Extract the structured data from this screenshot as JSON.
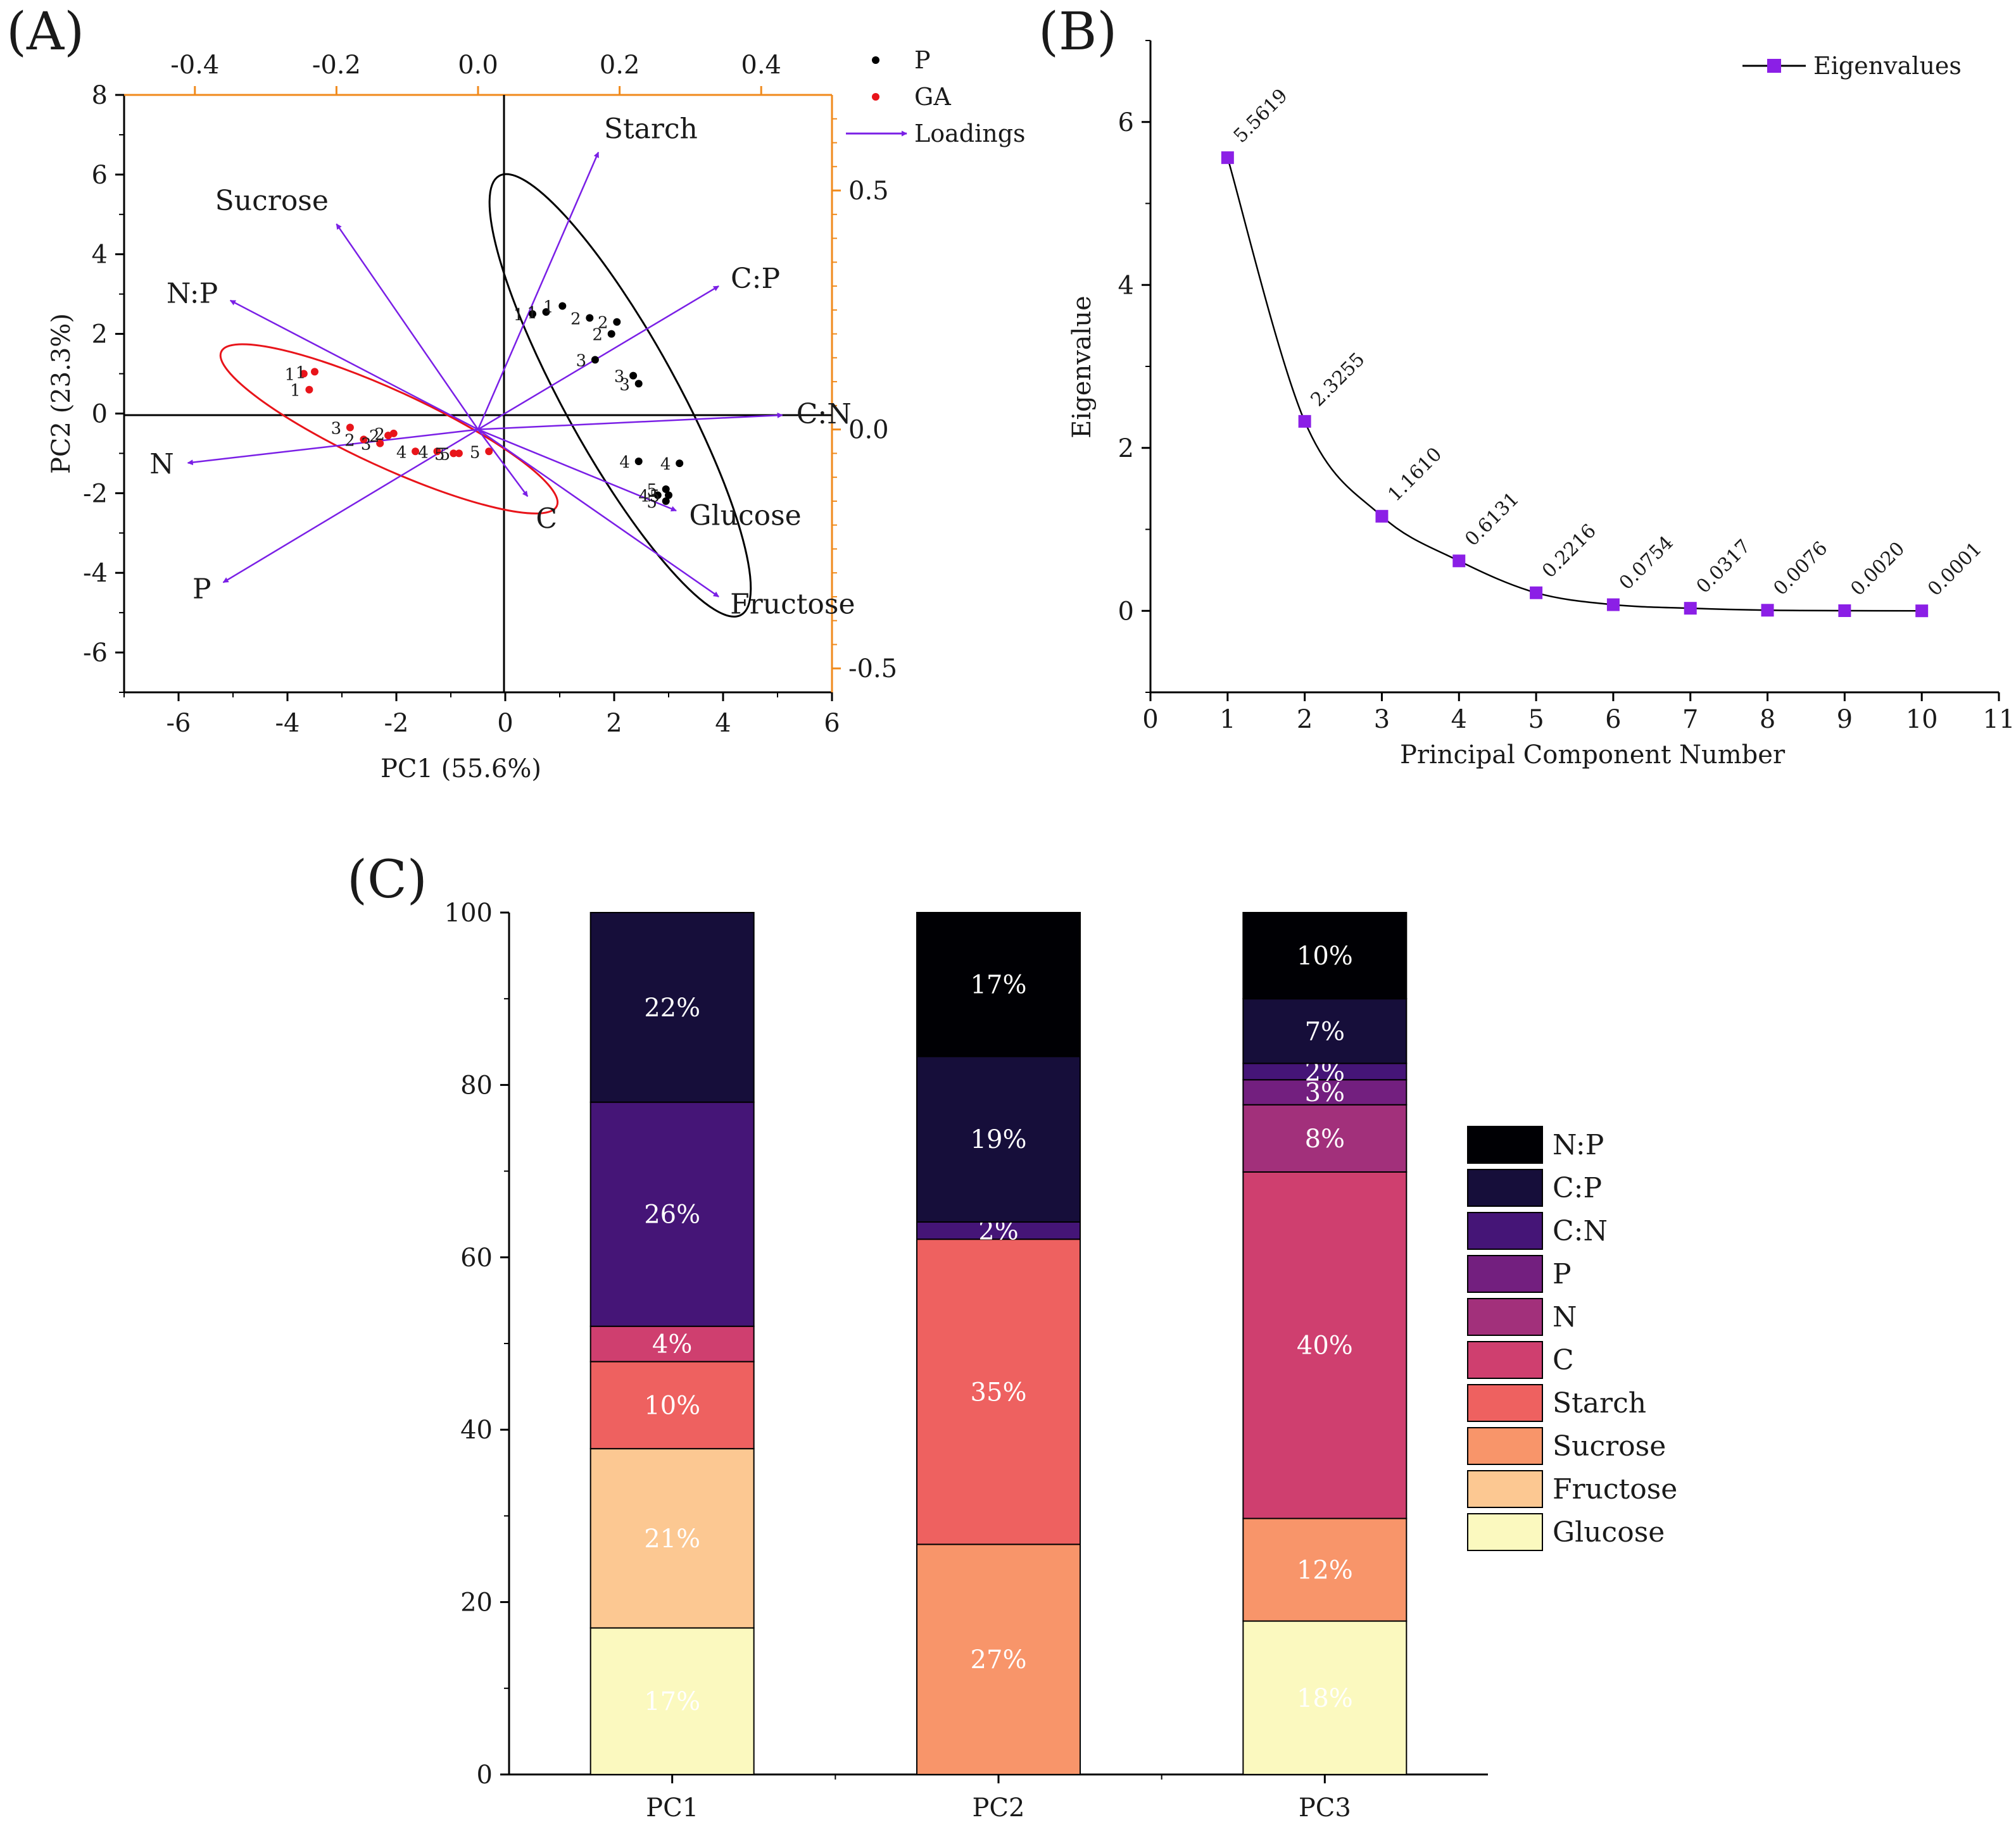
{
  "figure": {
    "panels": [
      "(A)",
      "(B)",
      "(C)"
    ]
  },
  "chart_data": [
    {
      "type": "scatter",
      "panel": "(A)",
      "title": "",
      "xlabel": "PC1 (55.6%)",
      "ylabel": "PC2 (23.3%)",
      "xlim": [
        -7,
        6
      ],
      "ylim": [
        -7,
        8
      ],
      "x_ticks": [
        -6,
        -4,
        -2,
        0,
        2,
        4,
        6
      ],
      "y_ticks": [
        -6,
        -4,
        -2,
        0,
        2,
        4,
        6,
        8
      ],
      "loading_xlim": [
        -0.5,
        0.5
      ],
      "loading_ylim": [
        -0.55,
        0.7
      ],
      "top_ticks": [
        "-0.4",
        "-0.2",
        "0.0",
        "0.2",
        "0.4"
      ],
      "top_tick_values": [
        -0.4,
        -0.2,
        0.0,
        0.2,
        0.4
      ],
      "right_ticks": [
        "0.5",
        "0.0",
        "-0.5"
      ],
      "right_tick_values": [
        0.5,
        0.0,
        -0.5
      ],
      "legend": [
        {
          "name": "P",
          "color": "#000000",
          "symbol": "dot"
        },
        {
          "name": "GA",
          "color": "#e8141a",
          "symbol": "dot"
        },
        {
          "name": "Loadings",
          "color": "#7a1fe6",
          "symbol": "arrow"
        }
      ],
      "series": [
        {
          "name": "P",
          "color": "#000000",
          "points": [
            {
              "x": 0.5,
              "y": 2.5,
              "label": "1"
            },
            {
              "x": 0.75,
              "y": 2.55,
              "label": "1"
            },
            {
              "x": 1.05,
              "y": 2.7,
              "label": "1"
            },
            {
              "x": 1.55,
              "y": 2.4,
              "label": "2"
            },
            {
              "x": 1.95,
              "y": 2.0,
              "label": "2"
            },
            {
              "x": 2.05,
              "y": 2.3,
              "label": "2"
            },
            {
              "x": 1.65,
              "y": 1.35,
              "label": "3"
            },
            {
              "x": 2.35,
              "y": 0.95,
              "label": "3"
            },
            {
              "x": 2.45,
              "y": 0.75,
              "label": "3"
            },
            {
              "x": 2.45,
              "y": -1.2,
              "label": "4"
            },
            {
              "x": 3.2,
              "y": -1.25,
              "label": "4"
            },
            {
              "x": 2.8,
              "y": -2.05,
              "label": "4"
            },
            {
              "x": 2.95,
              "y": -1.9,
              "label": "5"
            },
            {
              "x": 3.0,
              "y": -2.05,
              "label": "5"
            },
            {
              "x": 2.95,
              "y": -2.2,
              "label": "5"
            }
          ]
        },
        {
          "name": "GA",
          "color": "#e8141a",
          "points": [
            {
              "x": -3.7,
              "y": 1.0,
              "label": "1"
            },
            {
              "x": -3.5,
              "y": 1.05,
              "label": "1"
            },
            {
              "x": -3.6,
              "y": 0.6,
              "label": "1"
            },
            {
              "x": -2.85,
              "y": -0.35,
              "label": "3"
            },
            {
              "x": -2.6,
              "y": -0.65,
              "label": "2"
            },
            {
              "x": -2.3,
              "y": -0.75,
              "label": "3"
            },
            {
              "x": -2.15,
              "y": -0.55,
              "label": "2"
            },
            {
              "x": -2.05,
              "y": -0.5,
              "label": "2"
            },
            {
              "x": -1.65,
              "y": -0.95,
              "label": "4"
            },
            {
              "x": -1.25,
              "y": -0.95,
              "label": "4"
            },
            {
              "x": -0.95,
              "y": -1.0,
              "label": "5"
            },
            {
              "x": -0.85,
              "y": -1.0,
              "label": "5"
            },
            {
              "x": -0.3,
              "y": -0.95,
              "label": "5"
            }
          ]
        }
      ],
      "loadings": [
        {
          "name": "Starch",
          "x": 0.17,
          "y": 0.58
        },
        {
          "name": "Sucrose",
          "x": -0.2,
          "y": 0.43
        },
        {
          "name": "C:P",
          "x": 0.34,
          "y": 0.3
        },
        {
          "name": "N:P",
          "x": -0.35,
          "y": 0.27
        },
        {
          "name": "C:N",
          "x": 0.43,
          "y": 0.03
        },
        {
          "name": "N",
          "x": -0.41,
          "y": -0.07
        },
        {
          "name": "C",
          "x": 0.07,
          "y": -0.14
        },
        {
          "name": "Glucose",
          "x": 0.28,
          "y": -0.17
        },
        {
          "name": "P",
          "x": -0.36,
          "y": -0.32
        },
        {
          "name": "Fructose",
          "x": 0.34,
          "y": -0.35
        }
      ],
      "confidence_ellipses": [
        {
          "group": "P",
          "color": "#000000"
        },
        {
          "group": "GA",
          "color": "#e8141a"
        }
      ]
    },
    {
      "type": "line",
      "panel": "(B)",
      "title": "",
      "xlabel": "Principal Component Number",
      "ylabel": "Eigenvalue",
      "xlim": [
        0,
        11
      ],
      "ylim": [
        -1,
        7
      ],
      "x_ticks": [
        0,
        1,
        2,
        3,
        4,
        5,
        6,
        7,
        8,
        9,
        10,
        11
      ],
      "y_ticks": [
        0,
        2,
        4,
        6
      ],
      "legend": [
        "Eigenvalues"
      ],
      "color": "#8b1fe6",
      "x": [
        1,
        2,
        3,
        4,
        5,
        6,
        7,
        8,
        9,
        10
      ],
      "values": [
        5.5619,
        2.3255,
        1.161,
        0.6131,
        0.2216,
        0.0754,
        0.0317,
        0.0076,
        0.002,
        0.0001
      ],
      "data_labels": [
        "5.5619",
        "2.3255",
        "1.1610",
        "0.6131",
        "0.2216",
        "0.0754",
        "0.0317",
        "0.0076",
        "0.0020",
        "0.0001"
      ]
    },
    {
      "type": "bar",
      "panel": "(C)",
      "stacked": true,
      "title": "",
      "xlabel": "",
      "ylabel": "",
      "ylim": [
        0,
        100
      ],
      "y_ticks": [
        0,
        20,
        40,
        60,
        80,
        100
      ],
      "categories": [
        "PC1",
        "PC2",
        "PC3"
      ],
      "series": [
        {
          "name": "Glucose",
          "color": "#fbf9bf",
          "values": [
            17.0,
            0.0,
            17.8
          ],
          "labels": [
            "17%",
            "",
            "18%"
          ]
        },
        {
          "name": "Fructose",
          "color": "#fcc892",
          "values": [
            20.8,
            0.0,
            0.0
          ],
          "labels": [
            "21%",
            "",
            ""
          ]
        },
        {
          "name": "Sucrose",
          "color": "#f8956a",
          "values": [
            0.0,
            26.7,
            11.9
          ],
          "labels": [
            "",
            "27%",
            "12%"
          ]
        },
        {
          "name": "Starch",
          "color": "#ee6160",
          "values": [
            10.1,
            35.4,
            0.0
          ],
          "labels": [
            "10%",
            "35%",
            ""
          ]
        },
        {
          "name": "C",
          "color": "#cf3f6f",
          "values": [
            4.1,
            0.0,
            40.2
          ],
          "labels": [
            "4%",
            "",
            "40%"
          ]
        },
        {
          "name": "N",
          "color": "#a2307b",
          "values": [
            0.0,
            0.0,
            7.8
          ],
          "labels": [
            "",
            "",
            "8%"
          ]
        },
        {
          "name": "P",
          "color": "#731f7f",
          "values": [
            0.0,
            0.0,
            2.9
          ],
          "labels": [
            "",
            "",
            "3%"
          ]
        },
        {
          "name": "C:N",
          "color": "#451577",
          "values": [
            26.0,
            2.0,
            1.9
          ],
          "labels": [
            "26%",
            "2%",
            "2%"
          ]
        },
        {
          "name": "C:P",
          "color": "#160e3a",
          "values": [
            22.0,
            19.2,
            7.5
          ],
          "labels": [
            "22%",
            "19%",
            "7%"
          ]
        },
        {
          "name": "N:P",
          "color": "#000004",
          "values": [
            0.0,
            16.7,
            10.0
          ],
          "labels": [
            "",
            "17%",
            "10%"
          ]
        }
      ],
      "legend_order": [
        "N:P",
        "C:P",
        "C:N",
        "P",
        "N",
        "C",
        "Starch",
        "Sucrose",
        "Fructose",
        "Glucose"
      ]
    }
  ]
}
